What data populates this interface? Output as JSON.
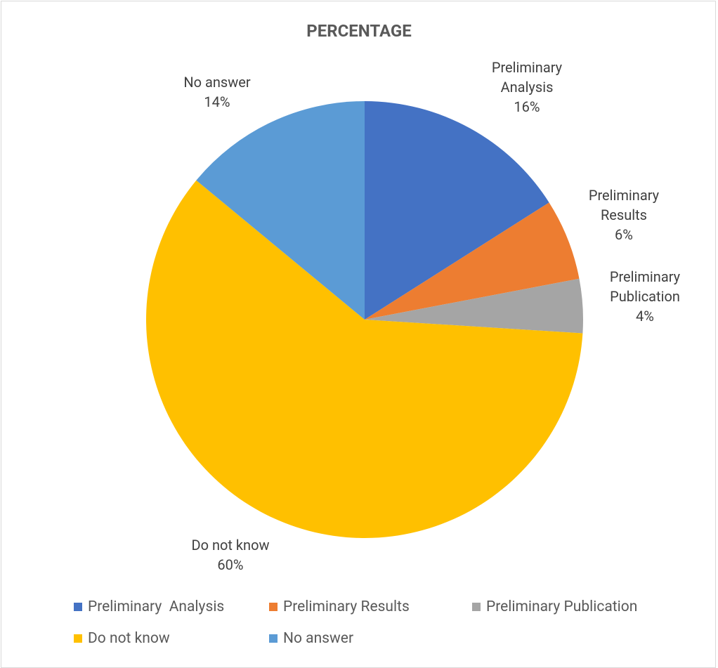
{
  "chart_data": {
    "type": "pie",
    "title": "PERCENTAGE",
    "categories": [
      "Preliminary  Analysis",
      "Preliminary Results",
      "Preliminary Publication",
      "Do not know",
      "No answer"
    ],
    "values": [
      16,
      6,
      4,
      60,
      14
    ],
    "value_labels": [
      "16%",
      "6%",
      "4%",
      "60%",
      "14%"
    ],
    "colors": [
      "#4472c4",
      "#ed7d31",
      "#a5a5a5",
      "#ffc000",
      "#5b9bd5"
    ],
    "legend": "bottom"
  }
}
